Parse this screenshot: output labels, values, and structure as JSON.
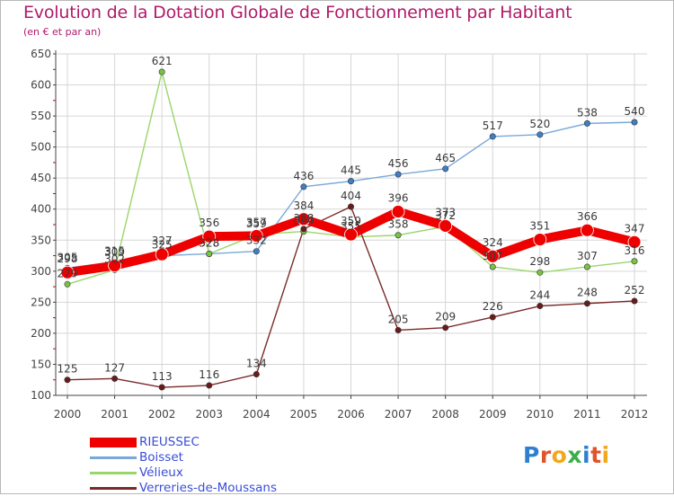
{
  "header": {
    "title": "Evolution de la Dotation Globale de Fonctionnement par Habitant",
    "subtitle": "(en € et par an)"
  },
  "brand": {
    "name": "Proxiti",
    "letters": [
      {
        "char": "P",
        "color": "#2f7fd0"
      },
      {
        "char": "r",
        "color": "#e0542c"
      },
      {
        "char": "o",
        "color": "#f2a81d"
      },
      {
        "char": "x",
        "color": "#3cae48"
      },
      {
        "char": "i",
        "color": "#2f7fd0"
      },
      {
        "char": "t",
        "color": "#e0542c"
      },
      {
        "char": "i",
        "color": "#f2a81d"
      }
    ]
  },
  "colors": {
    "title": "#b01a6a",
    "legend_text": "#3a4dd8",
    "grid": "#d6d6d6",
    "axis": "#444444",
    "tick_mark": "#cc0000",
    "label": "#444444"
  },
  "chart_data": {
    "type": "line",
    "title": "Evolution de la Dotation Globale de Fonctionnement par Habitant",
    "subtitle": "(en € et par an)",
    "x": [
      2000,
      2001,
      2002,
      2003,
      2004,
      2005,
      2006,
      2007,
      2008,
      2009,
      2010,
      2011,
      2012
    ],
    "x_tick_labels": [
      "2000",
      "2001",
      "2002",
      "2003",
      "2004",
      "2005",
      "2006",
      "2007",
      "2008",
      "2009",
      "2010",
      "2011",
      "2012"
    ],
    "ylim": [
      100,
      650
    ],
    "y_ticks": [
      100,
      150,
      200,
      250,
      300,
      350,
      400,
      450,
      500,
      550,
      600,
      650
    ],
    "grid": true,
    "legend_position": "bottom-left",
    "series": [
      {
        "name": "RIEUSSEC",
        "color": "#ee0000",
        "marker_fill": "#ee0000",
        "emphasis": true,
        "values": [
          298,
          309,
          327,
          356,
          357,
          384,
          359,
          396,
          373,
          324,
          351,
          366,
          347
        ],
        "point_labels": [
          "298",
          "309",
          "327",
          "356",
          "357",
          "384",
          "359",
          "396",
          "373",
          "324",
          "351",
          "366",
          "347"
        ]
      },
      {
        "name": "Boisset",
        "color": "#7aa8d8",
        "marker_fill": "#3e7fc6",
        "emphasis": false,
        "values": [
          305,
          315,
          325,
          328,
          332,
          436,
          445,
          456,
          465,
          517,
          520,
          538,
          540
        ],
        "point_labels": [
          "305",
          "315",
          "325",
          "328",
          "332",
          "436",
          "445",
          "456",
          "465",
          "517",
          "520",
          "538",
          "540"
        ]
      },
      {
        "name": "Vélieux",
        "color": "#9ad66a",
        "marker_fill": "#76c442",
        "emphasis": false,
        "values": [
          279,
          302,
          621,
          328,
          359,
          364,
          355,
          358,
          372,
          307,
          298,
          307,
          316
        ],
        "point_labels": [
          "279",
          "302",
          "621",
          "328",
          "359",
          "364",
          "355",
          "358",
          "372",
          "307",
          "298",
          "307",
          "316"
        ]
      },
      {
        "name": "Verreries-de-Moussans",
        "color": "#7a2a2a",
        "marker_fill": "#6b1a1a",
        "emphasis": false,
        "values": [
          125,
          127,
          113,
          116,
          134,
          368,
          404,
          205,
          209,
          226,
          244,
          248,
          252
        ],
        "point_labels": [
          "125",
          "127",
          "113",
          "116",
          "134",
          "368",
          "404",
          "205",
          "209",
          "226",
          "244",
          "248",
          "252"
        ]
      }
    ]
  }
}
